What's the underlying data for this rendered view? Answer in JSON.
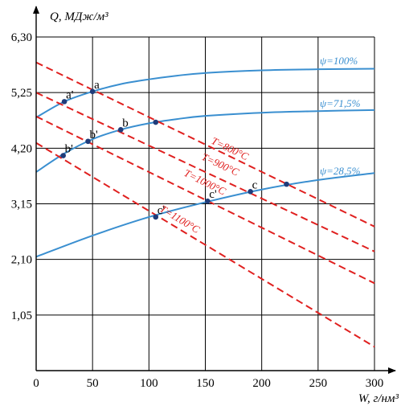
{
  "chart_data": {
    "type": "line",
    "ylabel": "Q, МДж/м³",
    "xlabel": "W, г/нм³",
    "xlim": [
      0,
      300
    ],
    "ylim": [
      0,
      6.3
    ],
    "x_ticks": [
      "0",
      "50",
      "100",
      "150",
      "200",
      "250",
      "300"
    ],
    "y_ticks": [
      "1,05",
      "2,10",
      "3,15",
      "4,20",
      "5,25",
      "6,30"
    ],
    "grid": true,
    "colors": {
      "psi": "#3a8fd0",
      "temp": "#e0201f",
      "point": "#1f3c7a"
    },
    "psi_series": [
      {
        "name": "ψ=100%",
        "x": [
          0,
          25,
          50,
          75,
          100,
          125,
          150,
          200,
          250,
          300
        ],
        "y": [
          4.78,
          5.08,
          5.27,
          5.41,
          5.5,
          5.57,
          5.62,
          5.67,
          5.69,
          5.7
        ]
      },
      {
        "name": "ψ=71,5%",
        "x": [
          0,
          25,
          50,
          75,
          100,
          125,
          150,
          200,
          250,
          300
        ],
        "y": [
          3.75,
          4.1,
          4.37,
          4.55,
          4.67,
          4.75,
          4.81,
          4.87,
          4.9,
          4.92
        ]
      },
      {
        "name": "ψ=28,5%",
        "x": [
          0,
          50,
          100,
          150,
          200,
          250,
          300
        ],
        "y": [
          2.15,
          2.55,
          2.9,
          3.18,
          3.42,
          3.6,
          3.73
        ]
      }
    ],
    "temp_series": [
      {
        "name": "T=800°C",
        "x": [
          0,
          300
        ],
        "y": [
          5.82,
          2.72
        ]
      },
      {
        "name": "T=900°C",
        "x": [
          0,
          300
        ],
        "y": [
          5.25,
          2.25
        ]
      },
      {
        "name": "T=1000°C",
        "x": [
          0,
          300
        ],
        "y": [
          4.8,
          1.65
        ]
      },
      {
        "name": "T=1100°C",
        "x": [
          0,
          300
        ],
        "y": [
          4.3,
          0.45
        ]
      }
    ],
    "points": [
      {
        "x": 50,
        "y": 5.27,
        "label": "a"
      },
      {
        "x": 25,
        "y": 5.08,
        "label": "a'"
      },
      {
        "x": 75,
        "y": 4.55,
        "label": "b"
      },
      {
        "x": 46,
        "y": 4.33,
        "label": "b'"
      },
      {
        "x": 24,
        "y": 4.06,
        "label": "b'"
      },
      {
        "x": 106,
        "y": 4.69,
        "label": ""
      },
      {
        "x": 190,
        "y": 3.38,
        "label": "c"
      },
      {
        "x": 222,
        "y": 3.52,
        "label": ""
      },
      {
        "x": 152,
        "y": 3.2,
        "label": "c'"
      },
      {
        "x": 106,
        "y": 2.9,
        "label": "c'"
      }
    ]
  }
}
